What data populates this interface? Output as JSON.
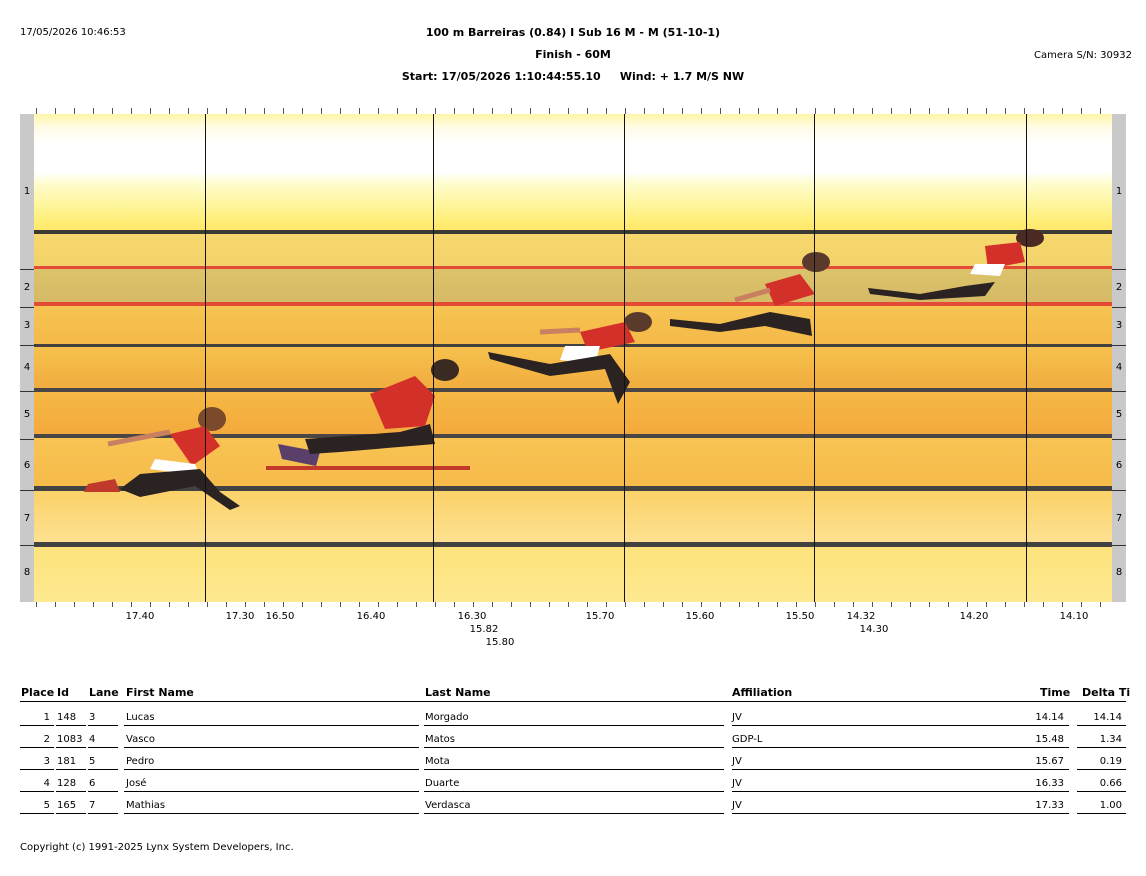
{
  "header": {
    "timestamp": "17/05/2026 10:46:53",
    "event": "100 m Barreiras (0.84) I Sub 16 M - M (51-10-1)",
    "finish": "Finish - 60M",
    "start": "Start: 17/05/2026 1:10:44:55.10",
    "wind": "Wind: + 1.7 M/S NW",
    "camera": "Camera S/N: 30932"
  },
  "photo_finish": {
    "lanes": [
      "1",
      "2",
      "3",
      "4",
      "5",
      "6",
      "7",
      "8"
    ],
    "time_labels": [
      "17.40",
      "17.30",
      "16.50",
      "16.40",
      "16.30",
      "15.82",
      "15.80",
      "15.70",
      "15.60",
      "15.50",
      "14.32",
      "14.30",
      "14.20",
      "14.10"
    ]
  },
  "results": {
    "columns": [
      "Place",
      "Id",
      "Lane",
      "First Name",
      "Last Name",
      "Affiliation",
      "Time",
      "Delta Ti"
    ],
    "rows": [
      {
        "place": "1",
        "id": "148",
        "lane": "3",
        "first": "Lucas",
        "last": "Morgado",
        "affiliation": "JV",
        "time": "14.14",
        "delta": "14.14"
      },
      {
        "place": "2",
        "id": "1083",
        "lane": "4",
        "first": "Vasco",
        "last": "Matos",
        "affiliation": "GDP-L",
        "time": "15.48",
        "delta": "1.34"
      },
      {
        "place": "3",
        "id": "181",
        "lane": "5",
        "first": "Pedro",
        "last": "Mota",
        "affiliation": "JV",
        "time": "15.67",
        "delta": "0.19"
      },
      {
        "place": "4",
        "id": "128",
        "lane": "6",
        "first": "José",
        "last": "Duarte",
        "affiliation": "JV",
        "time": "16.33",
        "delta": "0.66"
      },
      {
        "place": "5",
        "id": "165",
        "lane": "7",
        "first": "Mathias",
        "last": "Verdasca",
        "affiliation": "JV",
        "time": "17.33",
        "delta": "1.00"
      }
    ]
  },
  "footer": {
    "copyright": "Copyright (c) 1991-2025 Lynx System Developers, Inc."
  }
}
